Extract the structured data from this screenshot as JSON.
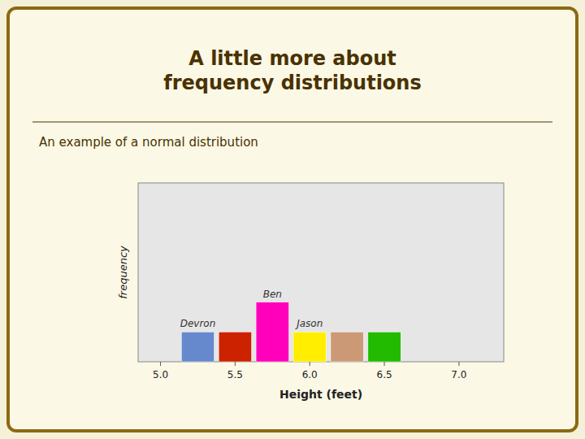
{
  "chart_data": {
    "type": "bar",
    "title": "A little more about\nfrequency distributions",
    "subtitle": "An example of a normal distribution",
    "x": [
      5.25,
      5.5,
      5.75,
      6.0,
      6.25,
      6.5
    ],
    "values": [
      1,
      1,
      2,
      1,
      1,
      1
    ],
    "colors": [
      "#6688cc",
      "#cc2200",
      "#ff00bb",
      "#ffee00",
      "#cc9977",
      "#22bb00"
    ],
    "labels": [
      "Devron",
      null,
      "Ben",
      "Jason",
      null,
      null
    ],
    "xlabel": "Height (feet)",
    "ylabel": "frequency",
    "xlim": [
      4.85,
      7.3
    ],
    "ylim": [
      0,
      6
    ],
    "xticks": [
      {
        "value": 5.0,
        "label": "5.0"
      },
      5.5,
      {
        "value": 6.0,
        "label": "6.0"
      },
      6.5,
      {
        "value": 7.0,
        "label": "7.0"
      }
    ],
    "tick_labels": "x",
    "grid": false
  }
}
